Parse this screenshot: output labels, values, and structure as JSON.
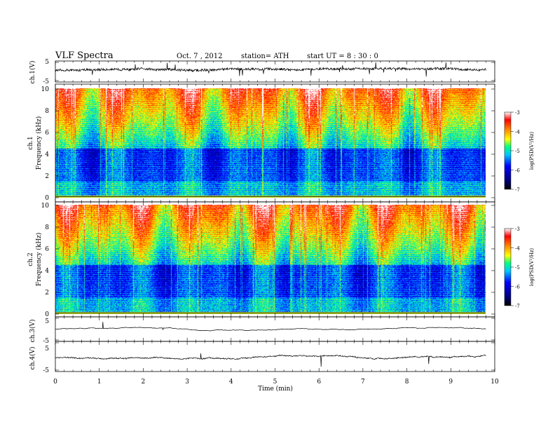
{
  "header": {
    "title": "VLF  Spectra",
    "date": "Oct. 7  , 2012",
    "station": "station= ATH",
    "start": "start  UT  =   8 : 30 : 0"
  },
  "chart_data": [
    {
      "type": "line",
      "ylabel": "ch.1(V)",
      "ylim": [
        -5,
        5
      ],
      "yticks": [
        "5",
        "-5"
      ],
      "xlim": [
        0,
        10
      ],
      "color": "#000000",
      "description_level": 0.8,
      "noise": 1.3
    },
    {
      "type": "heatmap",
      "ylabel": "ch.1\nFrequency (kHz)",
      "ylim": [
        0,
        10
      ],
      "yticks": [
        "0",
        "2",
        "4",
        "6",
        "8",
        "10"
      ],
      "xlim": [
        0,
        9.8
      ],
      "colorbar": {
        "label": "log(PSD(V²/Hz)",
        "range": [
          -7,
          -3
        ],
        "ticks": [
          "-3",
          "-4",
          "-5",
          "-6",
          "-7"
        ]
      }
    },
    {
      "type": "heatmap",
      "ylabel": "ch.2\nFrequency (kHz)",
      "ylim": [
        0,
        10
      ],
      "yticks": [
        "0",
        "2",
        "4",
        "6",
        "8",
        "10"
      ],
      "xlim": [
        0,
        9.8
      ],
      "colorbar": {
        "label": "log(PSD(V²/Hz)",
        "range": [
          -7,
          -3
        ],
        "ticks": [
          "-3",
          "-4",
          "-5",
          "-6",
          "-7"
        ]
      }
    },
    {
      "type": "line",
      "ylabel": "ch.3(V)",
      "ylim": [
        -5,
        5
      ],
      "yticks": [
        "5",
        "-5"
      ],
      "xlim": [
        0,
        10
      ],
      "color": "#000000",
      "description_level": 0.0,
      "noise": 0.05
    },
    {
      "type": "line",
      "ylabel": "ch.4(V)",
      "ylim": [
        -5,
        5
      ],
      "yticks": [
        "5",
        "-5"
      ],
      "xlim": [
        0,
        10
      ],
      "color": "#000000",
      "description_level": -0.4,
      "noise": 0.35,
      "xlabel": "Time  (min)",
      "xticks": [
        "0",
        "1",
        "2",
        "3",
        "4",
        "5",
        "6",
        "7",
        "8",
        "9",
        "10"
      ]
    }
  ]
}
